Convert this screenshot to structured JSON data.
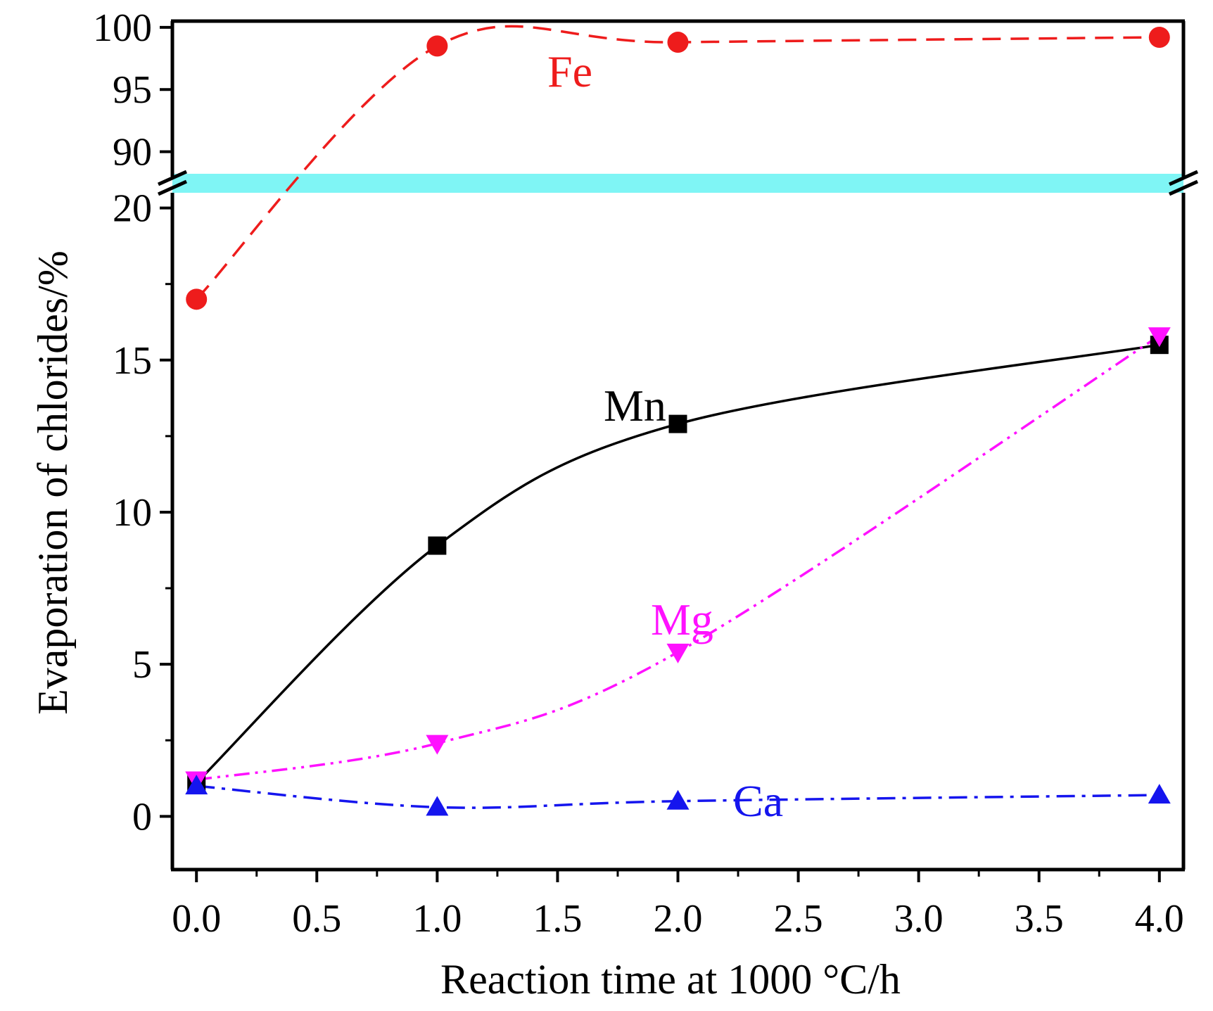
{
  "chart_data": {
    "type": "line",
    "title": "",
    "xlabel": "Reaction time at 1000 °C/h",
    "ylabel": "Evaporation of chlorides/%",
    "xlim": [
      -0.1,
      4.1
    ],
    "x_ticks": [
      "0.0",
      "0.5",
      "1.0",
      "1.5",
      "2.0",
      "2.5",
      "3.0",
      "3.5",
      "4.0"
    ],
    "y_axis_break": {
      "from": 20.5,
      "to": 88.0
    },
    "ylim_lower": [
      -1.75,
      20.5
    ],
    "ylim_upper": [
      88.0,
      100.5
    ],
    "y_ticks_lower": [
      "0",
      "5",
      "10",
      "15",
      "20"
    ],
    "y_ticks_upper": [
      "90",
      "95",
      "100"
    ],
    "break_band_color": "#7ff5f5",
    "series": [
      {
        "name": "Fe",
        "label": "Fe",
        "color": "#ee1c1c",
        "marker": "circle",
        "linestyle": "dash",
        "x": [
          0,
          1,
          2,
          4
        ],
        "values": [
          17.0,
          98.5,
          98.8,
          99.2
        ]
      },
      {
        "name": "Mn",
        "label": "Mn",
        "color": "#000000",
        "marker": "square",
        "linestyle": "solid",
        "x": [
          0,
          1,
          2,
          4
        ],
        "values": [
          1.1,
          8.9,
          12.9,
          15.5
        ]
      },
      {
        "name": "Mg",
        "label": "Mg",
        "color": "#ff11ff",
        "marker": "triangle-down",
        "linestyle": "dash-dot-dot",
        "x": [
          0,
          1,
          2,
          4
        ],
        "values": [
          1.2,
          2.4,
          5.4,
          15.8
        ]
      },
      {
        "name": "Ca",
        "label": "Ca",
        "color": "#1515ee",
        "marker": "triangle-up",
        "linestyle": "dash-dot",
        "x": [
          0,
          1,
          2,
          4
        ],
        "values": [
          1.0,
          0.3,
          0.5,
          0.7
        ]
      }
    ]
  }
}
